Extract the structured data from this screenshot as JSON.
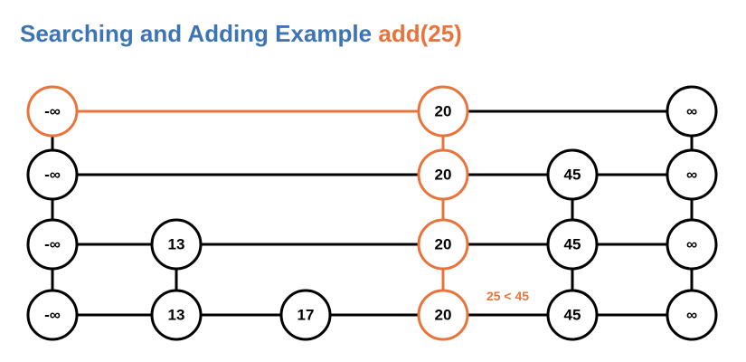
{
  "title": {
    "text": "Searching and Adding Example",
    "operation": "add(25)"
  },
  "colors": {
    "title_blue": "#3d74b6",
    "highlight": "#e8743b",
    "node_stroke": "#000000",
    "node_fill": "#ffffff"
  },
  "columns": [
    "-∞",
    "13",
    "17",
    "20",
    "45",
    "∞"
  ],
  "levels": [
    {
      "nodes": [
        "-∞",
        "20",
        "∞"
      ],
      "highlight_nodes": [
        "-∞",
        "20"
      ],
      "highlight_links": [
        [
          "-∞",
          "20"
        ]
      ]
    },
    {
      "nodes": [
        "-∞",
        "20",
        "45",
        "∞"
      ],
      "highlight_nodes": [
        "20"
      ],
      "highlight_links": []
    },
    {
      "nodes": [
        "-∞",
        "13",
        "20",
        "45",
        "∞"
      ],
      "highlight_nodes": [
        "20"
      ],
      "highlight_links": []
    },
    {
      "nodes": [
        "-∞",
        "13",
        "17",
        "20",
        "45",
        "∞"
      ],
      "highlight_nodes": [
        "20"
      ],
      "highlight_links": []
    }
  ],
  "highlight_vertical": {
    "column": "20",
    "from_level": 0,
    "to_level": 3
  },
  "annotation": {
    "text": "25 < 45",
    "between": [
      "20",
      "45"
    ],
    "level": 3
  }
}
